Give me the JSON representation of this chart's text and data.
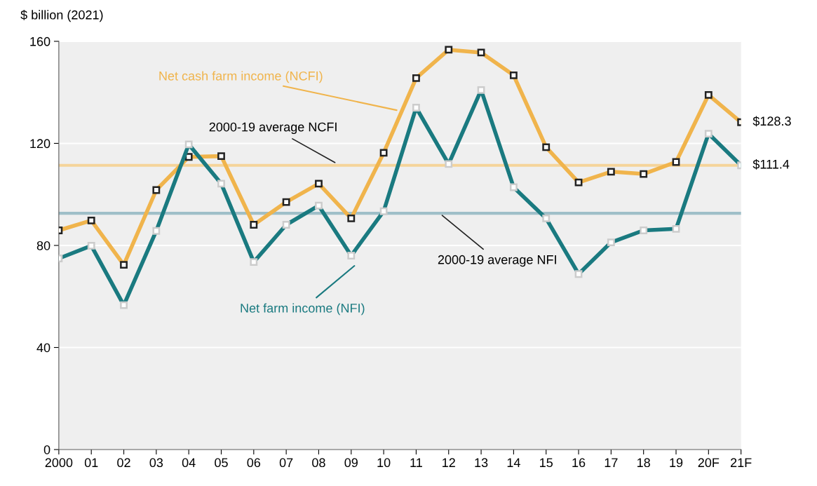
{
  "chart_data": {
    "type": "line",
    "ylabel": "$ billion (2021)",
    "categories": [
      "2000",
      "01",
      "02",
      "03",
      "04",
      "05",
      "06",
      "07",
      "08",
      "09",
      "10",
      "11",
      "12",
      "13",
      "14",
      "15",
      "16",
      "17",
      "18",
      "19",
      "20F",
      "21F"
    ],
    "series": [
      {
        "name": "Net cash farm income (NCFI)",
        "color": "#f0b44c",
        "values": [
          85.9,
          89.8,
          72.4,
          101.7,
          114.7,
          115.0,
          88.1,
          97.0,
          104.2,
          90.6,
          116.3,
          145.6,
          156.7,
          155.6,
          146.7,
          118.5,
          104.7,
          108.9,
          108.0,
          112.7,
          139.0,
          128.3
        ],
        "value_labels": [
          null,
          null,
          null,
          null,
          null,
          null,
          null,
          null,
          null,
          null,
          null,
          null,
          null,
          null,
          null,
          null,
          null,
          null,
          null,
          null,
          null,
          "$128.3"
        ]
      },
      {
        "name": "Net farm income (NFI)",
        "color": "#1a7a80",
        "values": [
          74.9,
          79.9,
          56.6,
          85.7,
          119.6,
          104.2,
          73.5,
          88.1,
          95.6,
          76.0,
          93.4,
          134.0,
          111.9,
          140.9,
          102.8,
          90.6,
          68.8,
          81.2,
          85.9,
          86.5,
          123.8,
          111.4
        ],
        "value_labels": [
          null,
          null,
          null,
          null,
          null,
          null,
          null,
          null,
          null,
          null,
          null,
          null,
          null,
          null,
          null,
          null,
          null,
          null,
          null,
          null,
          null,
          "$111.4"
        ]
      }
    ],
    "ref_lines": [
      {
        "axis": "y",
        "value": 111.4,
        "label": "2000-19 average NCFI",
        "color": "#f5d49a"
      },
      {
        "axis": "y",
        "value": 92.6,
        "label": "2000-19 average NFI",
        "color": "#9fbfc8"
      }
    ],
    "ylim": [
      0,
      160
    ],
    "yticks": [
      0,
      40,
      80,
      120,
      160
    ],
    "grid": "y",
    "legend": false,
    "marker": "square",
    "line_style": "solid"
  }
}
